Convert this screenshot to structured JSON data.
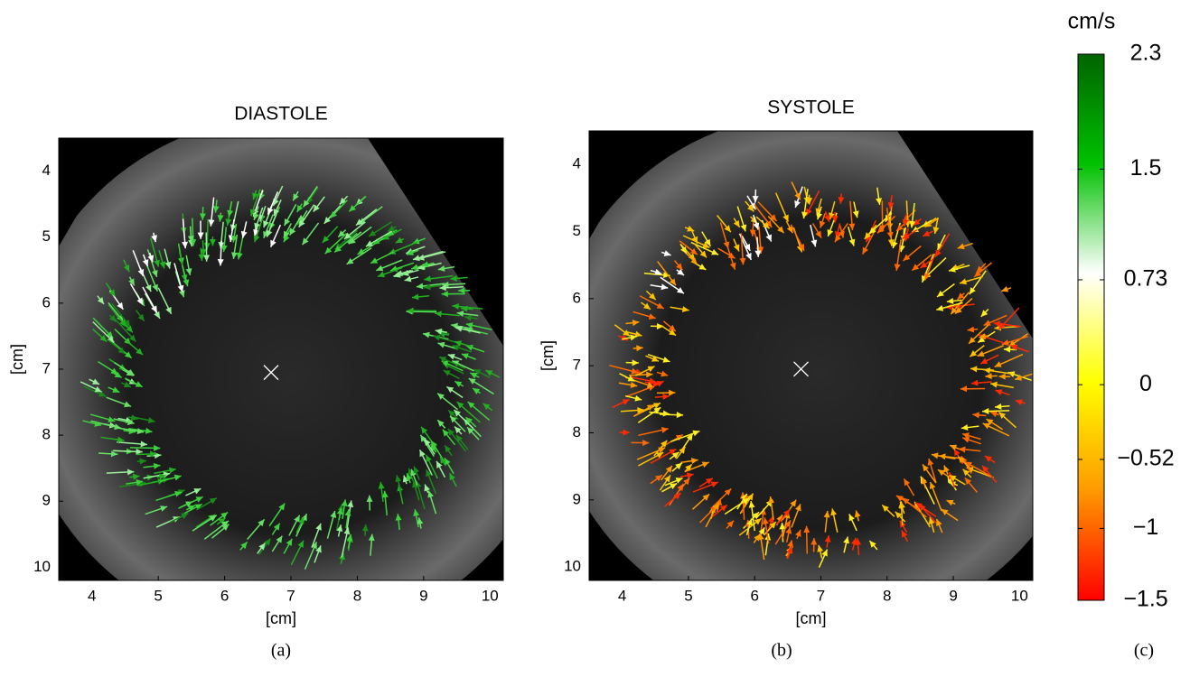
{
  "chart_data": [
    {
      "type": "quiver",
      "title": "DIASTOLE",
      "xlabel": "[cm]",
      "ylabel": "[cm]",
      "caption": "(a)",
      "xlim": [
        3.5,
        10.2
      ],
      "ylim": [
        10.2,
        3.5
      ],
      "xticks": [
        4,
        5,
        6,
        7,
        8,
        9,
        10
      ],
      "yticks": [
        4,
        5,
        6,
        7,
        8,
        9,
        10
      ]
    },
    {
      "type": "quiver",
      "title": "SYSTOLE",
      "xlabel": "[cm]",
      "ylabel": "[cm]",
      "caption": "(b)",
      "xlim": [
        3.5,
        10.2
      ],
      "ylim": [
        10.2,
        3.5
      ],
      "xticks": [
        4,
        5,
        6,
        7,
        8,
        9,
        10
      ],
      "yticks": [
        4,
        5,
        6,
        7,
        8,
        9,
        10
      ]
    },
    {
      "type": "colorbar",
      "title": "cm/s",
      "caption": "(c)",
      "ylim": [
        -1.5,
        2.3
      ],
      "yticks": [
        2.3,
        1.5,
        0.73,
        0,
        {
          "value": -0.52,
          "label": "−0.52"
        },
        {
          "value": -1,
          "label": "−1"
        },
        {
          "value": -1.5,
          "label": "−1.5"
        }
      ],
      "colormap": [
        "#006400",
        "#00c000",
        "#ffffff",
        "#ffff00",
        "#ff9900",
        "#ff0000"
      ]
    }
  ]
}
